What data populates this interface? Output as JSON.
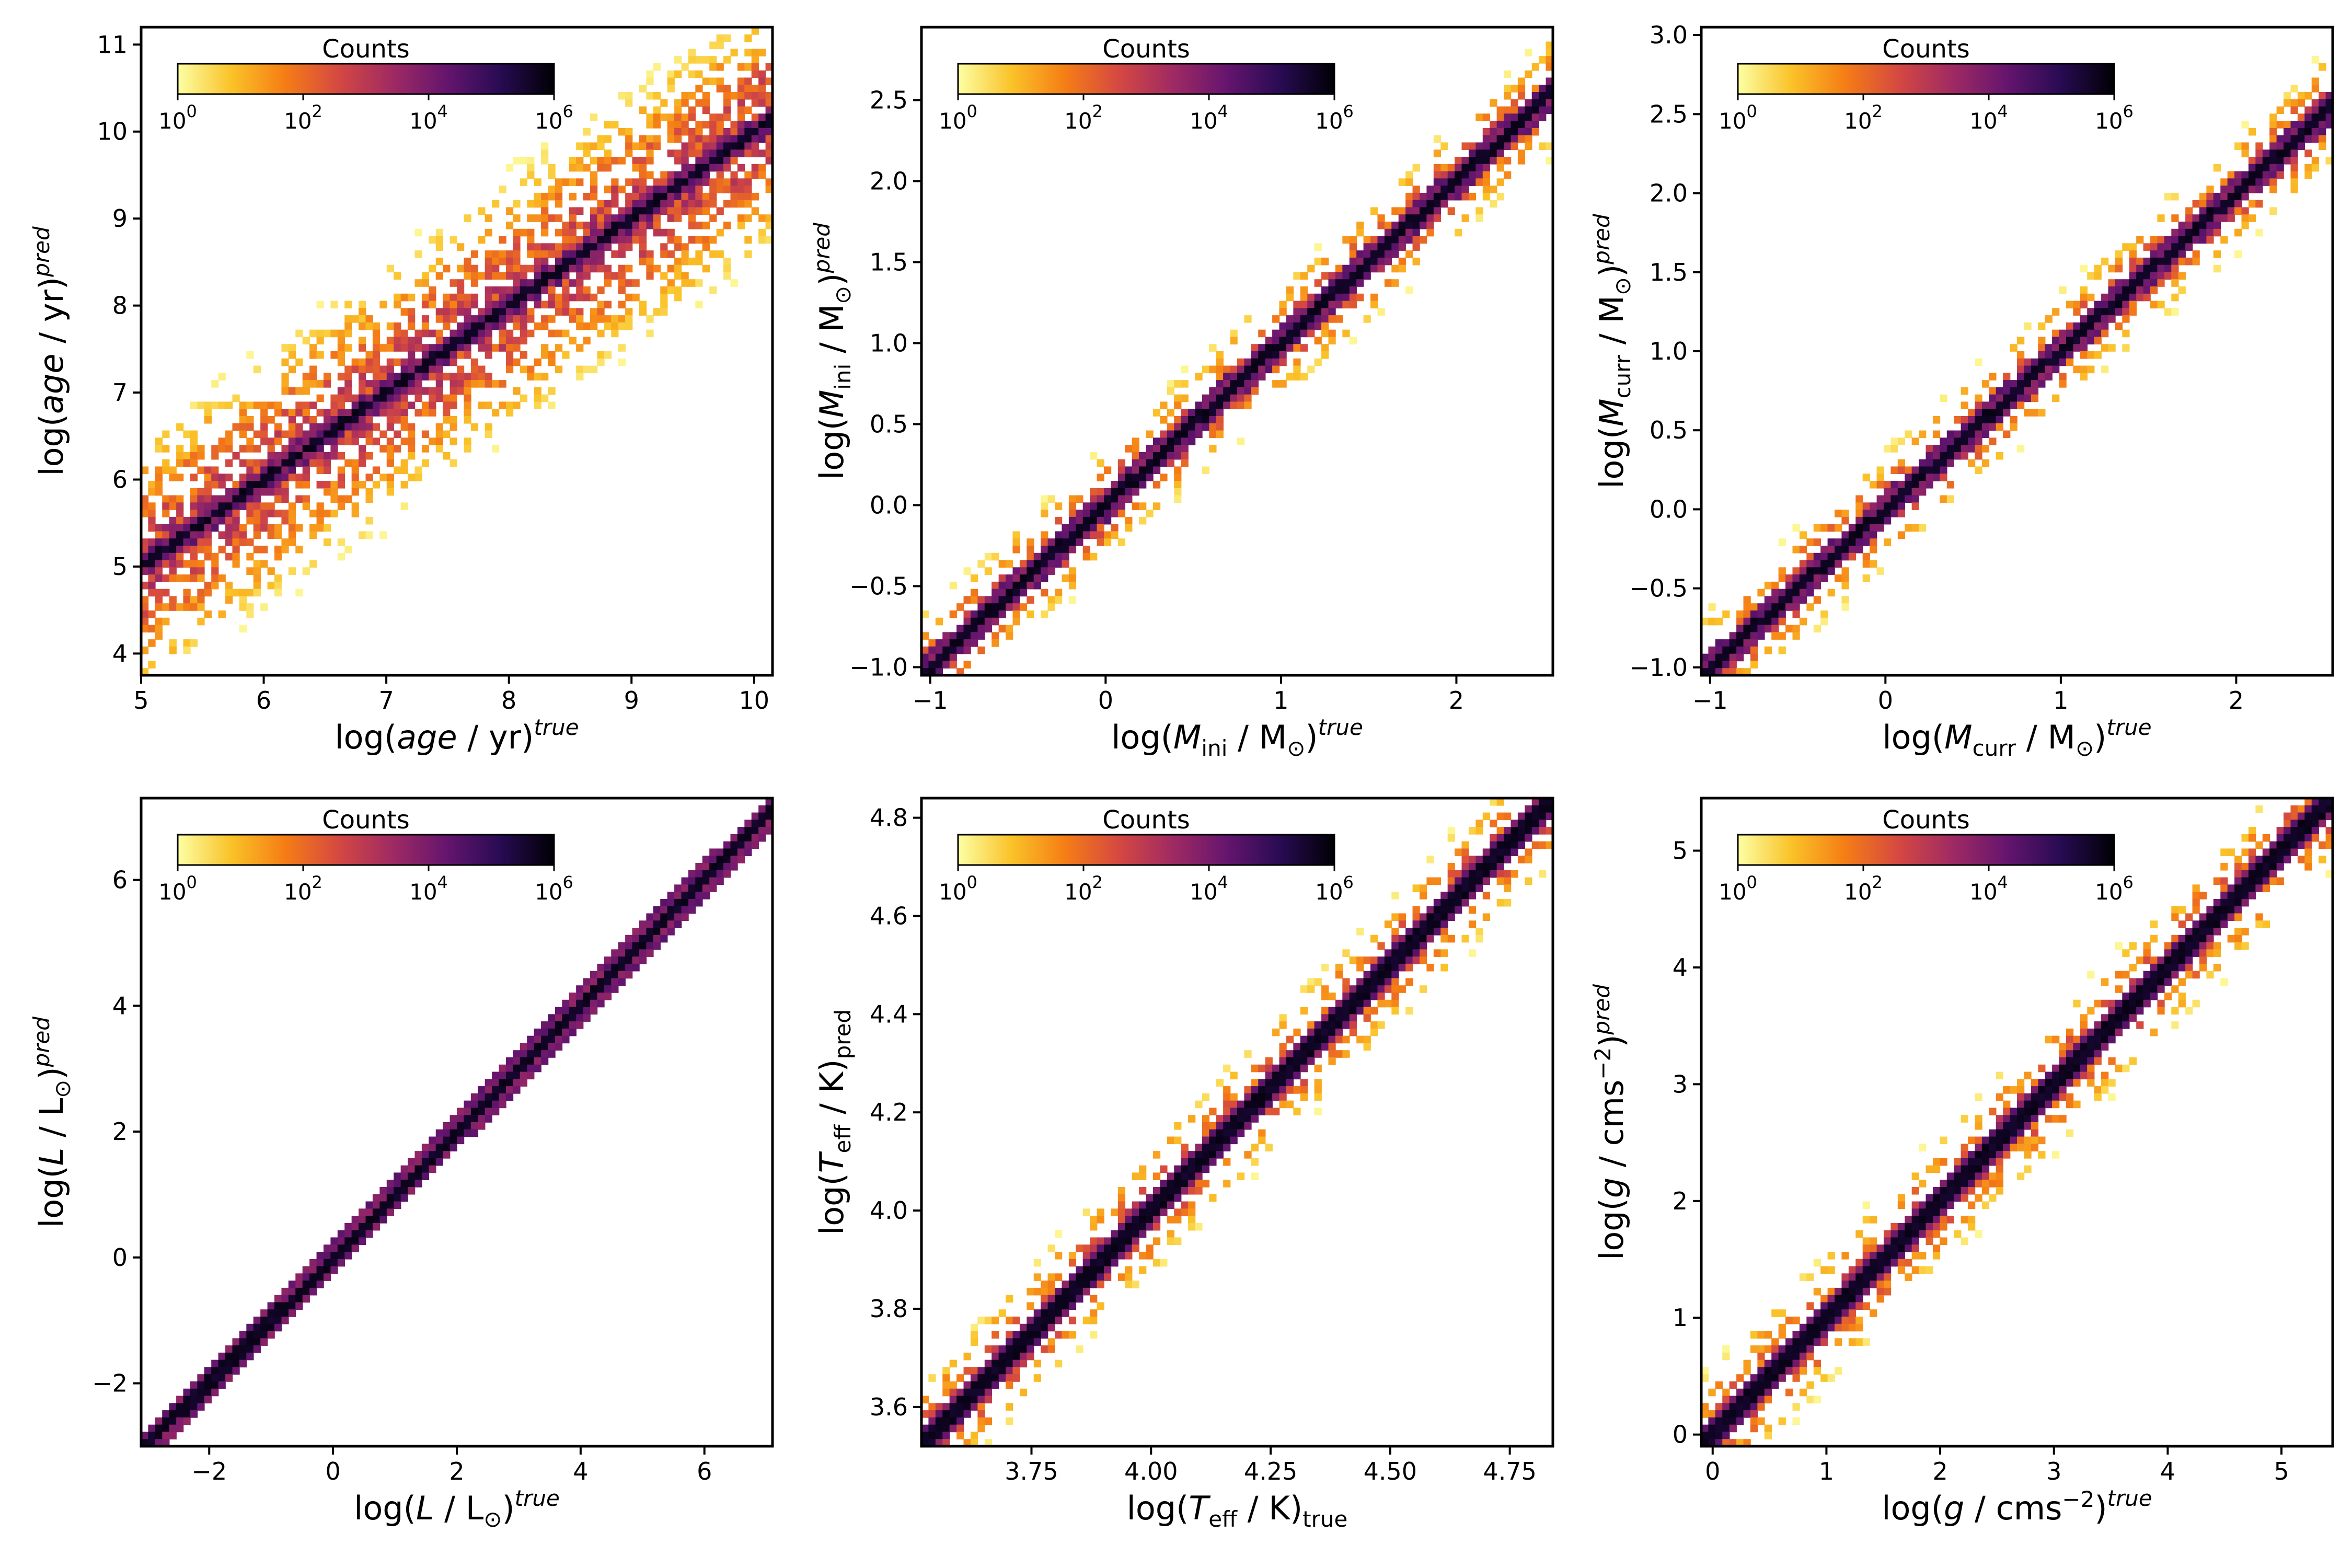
{
  "colorbar": {
    "title": "Counts",
    "ticks": [
      {
        "base": "10",
        "exp": "0"
      },
      {
        "base": "10",
        "exp": "2"
      },
      {
        "base": "10",
        "exp": "4"
      },
      {
        "base": "10",
        "exp": "6"
      }
    ]
  },
  "colormap": [
    "#fcffa4",
    "#fac228",
    "#f57d15",
    "#d44842",
    "#9f2a63",
    "#65156e",
    "#280b53",
    "#000004"
  ],
  "chart_data": [
    {
      "type": "heatmap",
      "title": "",
      "xlabel": "log(age / yr)^true",
      "ylabel": "log(age / yr)^pred",
      "xlabel_parts": [
        "log(",
        "age",
        " / yr)",
        "true"
      ],
      "ylabel_parts": [
        "log(",
        "age",
        " / yr)",
        "pred"
      ],
      "xlim": [
        5,
        10.15
      ],
      "ylim": [
        3.75,
        11.2
      ],
      "xticks": [
        5,
        6,
        7,
        8,
        9,
        10
      ],
      "yticks": [
        4,
        5,
        6,
        7,
        8,
        9,
        10,
        11
      ],
      "xtick_labels": [
        "5",
        "6",
        "7",
        "8",
        "9",
        "10"
      ],
      "ytick_labels": [
        "4",
        "5",
        "6",
        "7",
        "8",
        "9",
        "10",
        "11"
      ],
      "diagonal": [
        5,
        10.15
      ],
      "scatter_level": "high",
      "colorbar": "top-left"
    },
    {
      "type": "heatmap",
      "title": "",
      "xlabel": "log(M_ini / M_⊙)^true",
      "ylabel": "log(M_ini / M_⊙)^pred",
      "xlabel_parts": [
        "log(",
        "M",
        "ini",
        " / M",
        "⊙",
        ")",
        "true"
      ],
      "ylabel_parts": [
        "log(",
        "M",
        "ini",
        " / M",
        "⊙",
        ")",
        "pred"
      ],
      "xlim": [
        -1.05,
        2.55
      ],
      "ylim": [
        -1.05,
        2.95
      ],
      "xticks": [
        -1,
        0,
        1,
        2
      ],
      "yticks": [
        -1.0,
        -0.5,
        0.0,
        0.5,
        1.0,
        1.5,
        2.0,
        2.5
      ],
      "xtick_labels": [
        "−1",
        "0",
        "1",
        "2"
      ],
      "ytick_labels": [
        "−1.0",
        "−0.5",
        "0.0",
        "0.5",
        "1.0",
        "1.5",
        "2.0",
        "2.5"
      ],
      "diagonal": [
        -1.05,
        2.55
      ],
      "scatter_level": "medium",
      "colorbar": "top-left"
    },
    {
      "type": "heatmap",
      "title": "",
      "xlabel": "log(M_curr / M_⊙)^true",
      "ylabel": "log(M_curr / M_⊙)^pred",
      "xlabel_parts": [
        "log(",
        "M",
        "curr",
        " / M",
        "⊙",
        ")",
        "true"
      ],
      "ylabel_parts": [
        "log(",
        "M",
        "curr",
        " / M",
        "⊙",
        ")",
        "pred"
      ],
      "xlim": [
        -1.05,
        2.55
      ],
      "ylim": [
        -1.05,
        3.05
      ],
      "xticks": [
        -1,
        0,
        1,
        2
      ],
      "yticks": [
        -1.0,
        -0.5,
        0.0,
        0.5,
        1.0,
        1.5,
        2.0,
        2.5,
        3.0
      ],
      "xtick_labels": [
        "−1",
        "0",
        "1",
        "2"
      ],
      "ytick_labels": [
        "−1.0",
        "−0.5",
        "0.0",
        "0.5",
        "1.0",
        "1.5",
        "2.0",
        "2.5",
        "3.0"
      ],
      "diagonal": [
        -1.05,
        2.55
      ],
      "scatter_level": "medium",
      "colorbar": "top-left"
    },
    {
      "type": "heatmap",
      "title": "",
      "xlabel": "log(L / L_⊙)^true",
      "ylabel": "log(L / L_⊙)^pred",
      "xlabel_parts": [
        "log(",
        "L",
        " / L",
        "⊙",
        ")",
        "true"
      ],
      "ylabel_parts": [
        "log(",
        "L",
        " / L",
        "⊙",
        ")",
        "pred"
      ],
      "xlim": [
        -3.1,
        7.1
      ],
      "ylim": [
        -3.0,
        7.3
      ],
      "xticks": [
        -2,
        0,
        2,
        4,
        6
      ],
      "yticks": [
        -2,
        0,
        2,
        4,
        6
      ],
      "xtick_labels": [
        "−2",
        "0",
        "2",
        "4",
        "6"
      ],
      "ytick_labels": [
        "−2",
        "0",
        "2",
        "4",
        "6"
      ],
      "diagonal": [
        -3.1,
        7.1
      ],
      "scatter_level": "low",
      "colorbar": "top-left"
    },
    {
      "type": "heatmap",
      "title": "",
      "xlabel": "log(T_eff / K)^true",
      "ylabel": "log(T_eff / K)^pred",
      "xlabel_parts": [
        "log(",
        "T",
        "eff",
        " / K)",
        "true"
      ],
      "ylabel_parts": [
        "log(",
        "T",
        "eff",
        " / K)",
        "pred"
      ],
      "xlim": [
        3.52,
        4.84
      ],
      "ylim": [
        3.52,
        4.84
      ],
      "xticks": [
        3.75,
        4.0,
        4.25,
        4.5,
        4.75
      ],
      "yticks": [
        3.6,
        3.8,
        4.0,
        4.2,
        4.4,
        4.6,
        4.8
      ],
      "xtick_labels": [
        "3.75",
        "4.00",
        "4.25",
        "4.50",
        "4.75"
      ],
      "ytick_labels": [
        "3.6",
        "3.8",
        "4.0",
        "4.2",
        "4.4",
        "4.6",
        "4.8"
      ],
      "diagonal": [
        3.52,
        4.84
      ],
      "scatter_level": "medium",
      "colorbar": "top-left"
    },
    {
      "type": "heatmap",
      "title": "",
      "xlabel": "log(g / cms^−2)^true",
      "ylabel": "log(g / cms^−2)^pred",
      "xlabel_parts": [
        "log(",
        "g",
        " / cms",
        "−2",
        ")",
        "true"
      ],
      "ylabel_parts": [
        "log(",
        "g",
        " / cms",
        "−2",
        ")",
        "pred"
      ],
      "xlim": [
        -0.1,
        5.45
      ],
      "ylim": [
        -0.1,
        5.45
      ],
      "xticks": [
        0,
        1,
        2,
        3,
        4,
        5
      ],
      "yticks": [
        0,
        1,
        2,
        3,
        4,
        5
      ],
      "xtick_labels": [
        "0",
        "1",
        "2",
        "3",
        "4",
        "5"
      ],
      "ytick_labels": [
        "0",
        "1",
        "2",
        "3",
        "4",
        "5"
      ],
      "diagonal": [
        -0.1,
        5.45
      ],
      "scatter_level": "medium",
      "colorbar": "top-left"
    }
  ]
}
